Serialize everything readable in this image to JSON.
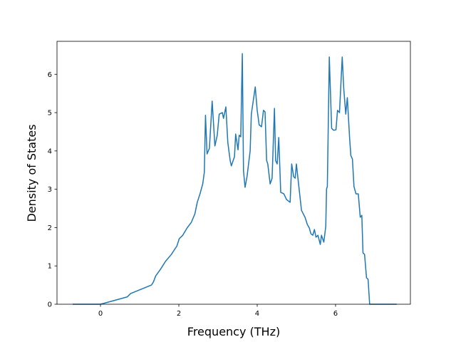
{
  "chart_data": {
    "type": "line",
    "xlabel": "Frequency (THz)",
    "ylabel": "Density of States",
    "color": "#1f77b4",
    "xlim": [
      -1.11,
      7.91
    ],
    "ylim": [
      0,
      6.86
    ],
    "xticks": [
      0,
      2,
      4,
      6
    ],
    "yticks": [
      0,
      1,
      2,
      3,
      4,
      5,
      6
    ],
    "x": [
      -0.71,
      0,
      0.68,
      0.77,
      1.3,
      1.35,
      1.41,
      1.53,
      1.66,
      1.81,
      1.86,
      1.95,
      2.01,
      2.1,
      2.21,
      2.32,
      2.41,
      2.47,
      2.54,
      2.61,
      2.65,
      2.68,
      2.72,
      2.78,
      2.85,
      2.92,
      2.98,
      3.03,
      3.11,
      3.14,
      3.2,
      3.25,
      3.31,
      3.34,
      3.42,
      3.45,
      3.51,
      3.54,
      3.58,
      3.62,
      3.65,
      3.69,
      3.74,
      3.82,
      3.85,
      3.95,
      4.0,
      4.05,
      4.11,
      4.16,
      4.2,
      4.24,
      4.27,
      4.33,
      4.38,
      4.44,
      4.47,
      4.51,
      4.55,
      4.6,
      4.68,
      4.75,
      4.84,
      4.88,
      4.93,
      4.97,
      5.0,
      5.06,
      5.13,
      5.22,
      5.28,
      5.33,
      5.37,
      5.42,
      5.46,
      5.5,
      5.55,
      5.61,
      5.64,
      5.7,
      5.75,
      5.77,
      5.79,
      5.84,
      5.9,
      5.95,
      6.01,
      6.05,
      6.1,
      6.17,
      6.21,
      6.26,
      6.3,
      6.36,
      6.39,
      6.43,
      6.47,
      6.52,
      6.58,
      6.63,
      6.67,
      6.7,
      6.74,
      6.79,
      6.83,
      6.87,
      7.56
    ],
    "values": [
      0,
      0,
      0.19,
      0.28,
      0.5,
      0.58,
      0.74,
      0.91,
      1.12,
      1.3,
      1.38,
      1.52,
      1.71,
      1.8,
      1.99,
      2.14,
      2.36,
      2.66,
      2.88,
      3.14,
      3.44,
      4.93,
      3.92,
      4.07,
      5.3,
      4.13,
      4.41,
      4.96,
      5.0,
      4.85,
      5.15,
      4.22,
      3.75,
      3.61,
      3.85,
      4.44,
      4.03,
      4.41,
      4.37,
      6.54,
      3.48,
      3.05,
      3.33,
      4.0,
      4.96,
      5.67,
      5.06,
      4.68,
      4.63,
      5.06,
      5.02,
      3.75,
      3.66,
      3.14,
      3.29,
      5.11,
      3.75,
      3.66,
      4.35,
      2.92,
      2.88,
      2.73,
      2.66,
      3.66,
      3.33,
      3.29,
      3.66,
      3.1,
      2.45,
      2.27,
      2.08,
      1.99,
      1.84,
      1.8,
      1.95,
      1.75,
      1.8,
      1.56,
      1.8,
      1.62,
      2.03,
      3.01,
      3.07,
      6.45,
      4.59,
      4.54,
      4.55,
      5.06,
      5.0,
      6.45,
      5.61,
      4.96,
      5.39,
      4.31,
      3.88,
      3.79,
      3.07,
      2.88,
      2.88,
      2.27,
      2.32,
      1.34,
      1.3,
      0.69,
      0.65,
      0,
      0
    ]
  }
}
